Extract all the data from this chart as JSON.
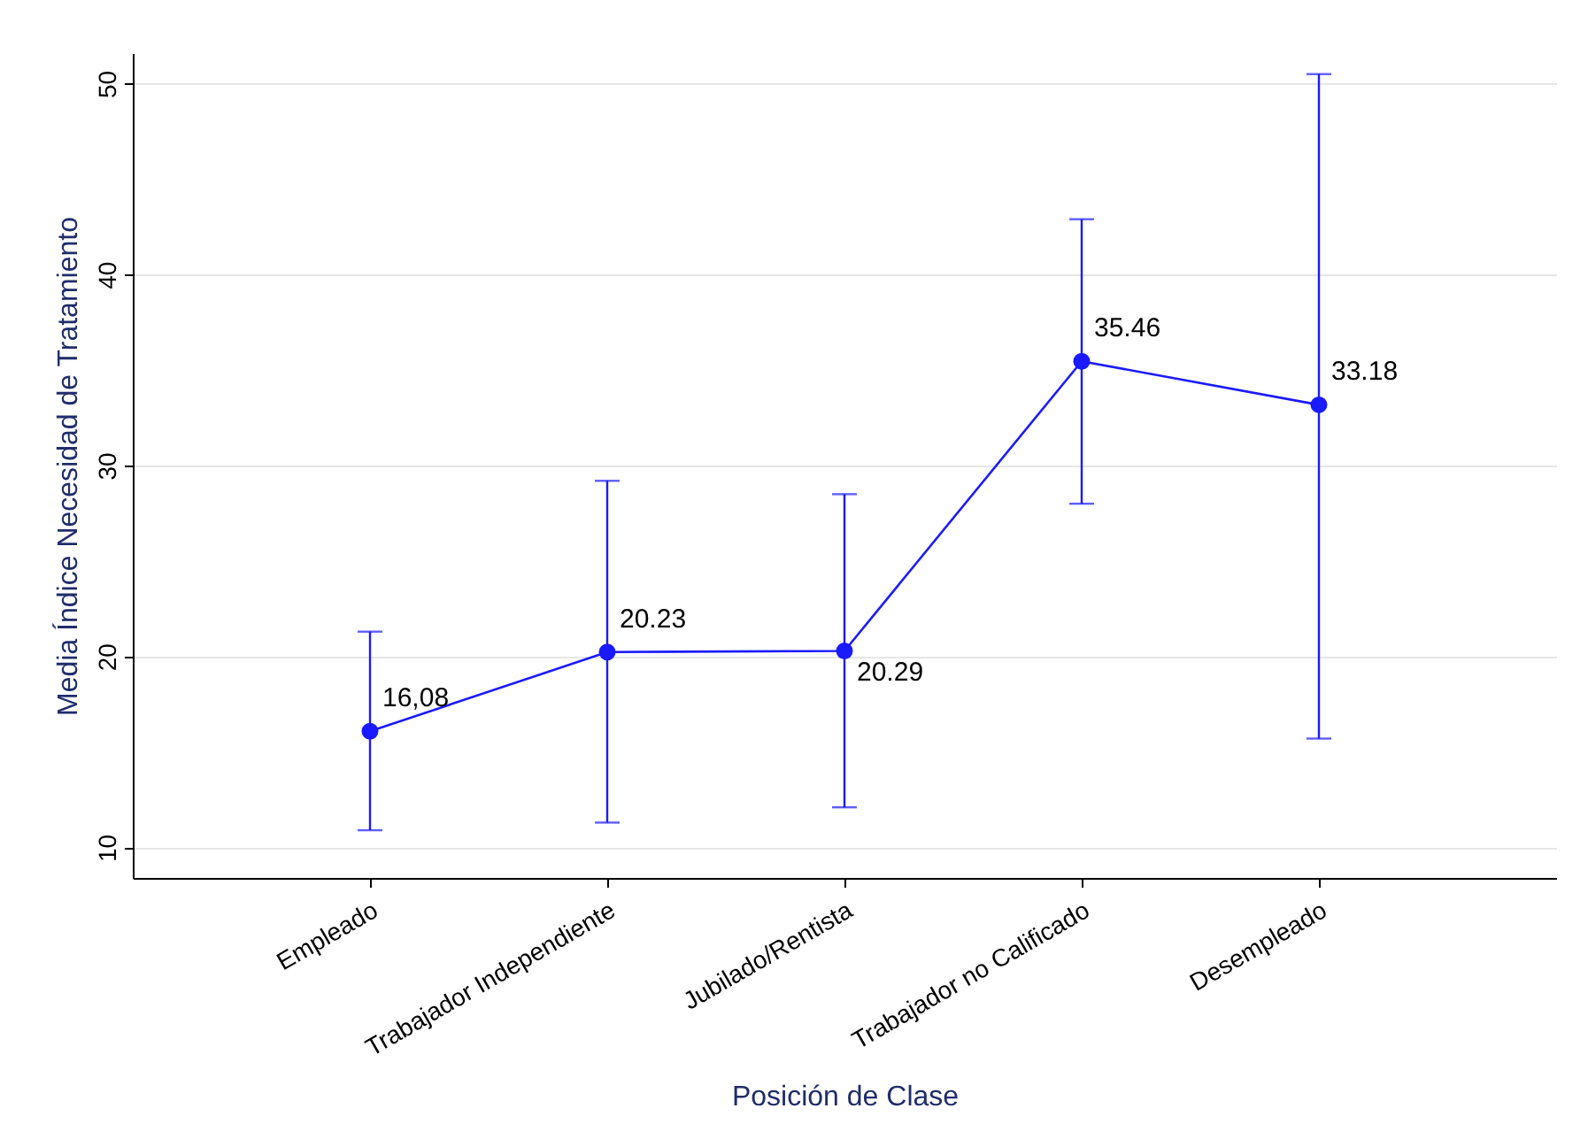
{
  "chart_data": {
    "type": "line",
    "xlabel": "Posición de Clase",
    "ylabel": "Media Índice Necesidad de Tratamiento",
    "categories": [
      "Empleado",
      "Trabajador Independiente",
      "Jubilado/Rentista",
      "Trabajador no Calificado",
      "Desempleado"
    ],
    "values": [
      16.08,
      20.23,
      20.29,
      35.46,
      33.18
    ],
    "value_labels": [
      "16,08",
      "20.23",
      "20.29",
      "35.46",
      "33.18"
    ],
    "errors": [
      [
        10.9,
        21.3
      ],
      [
        11.3,
        29.2
      ],
      [
        12.1,
        28.5
      ],
      [
        28.0,
        42.9
      ],
      [
        15.7,
        50.5
      ]
    ],
    "color": "#1a1aff",
    "marker": "circle",
    "line_style": "solid",
    "ylim": [
      8.4,
      51.6
    ],
    "yticks": [
      10,
      20,
      30,
      40,
      50
    ],
    "grid": "y"
  }
}
